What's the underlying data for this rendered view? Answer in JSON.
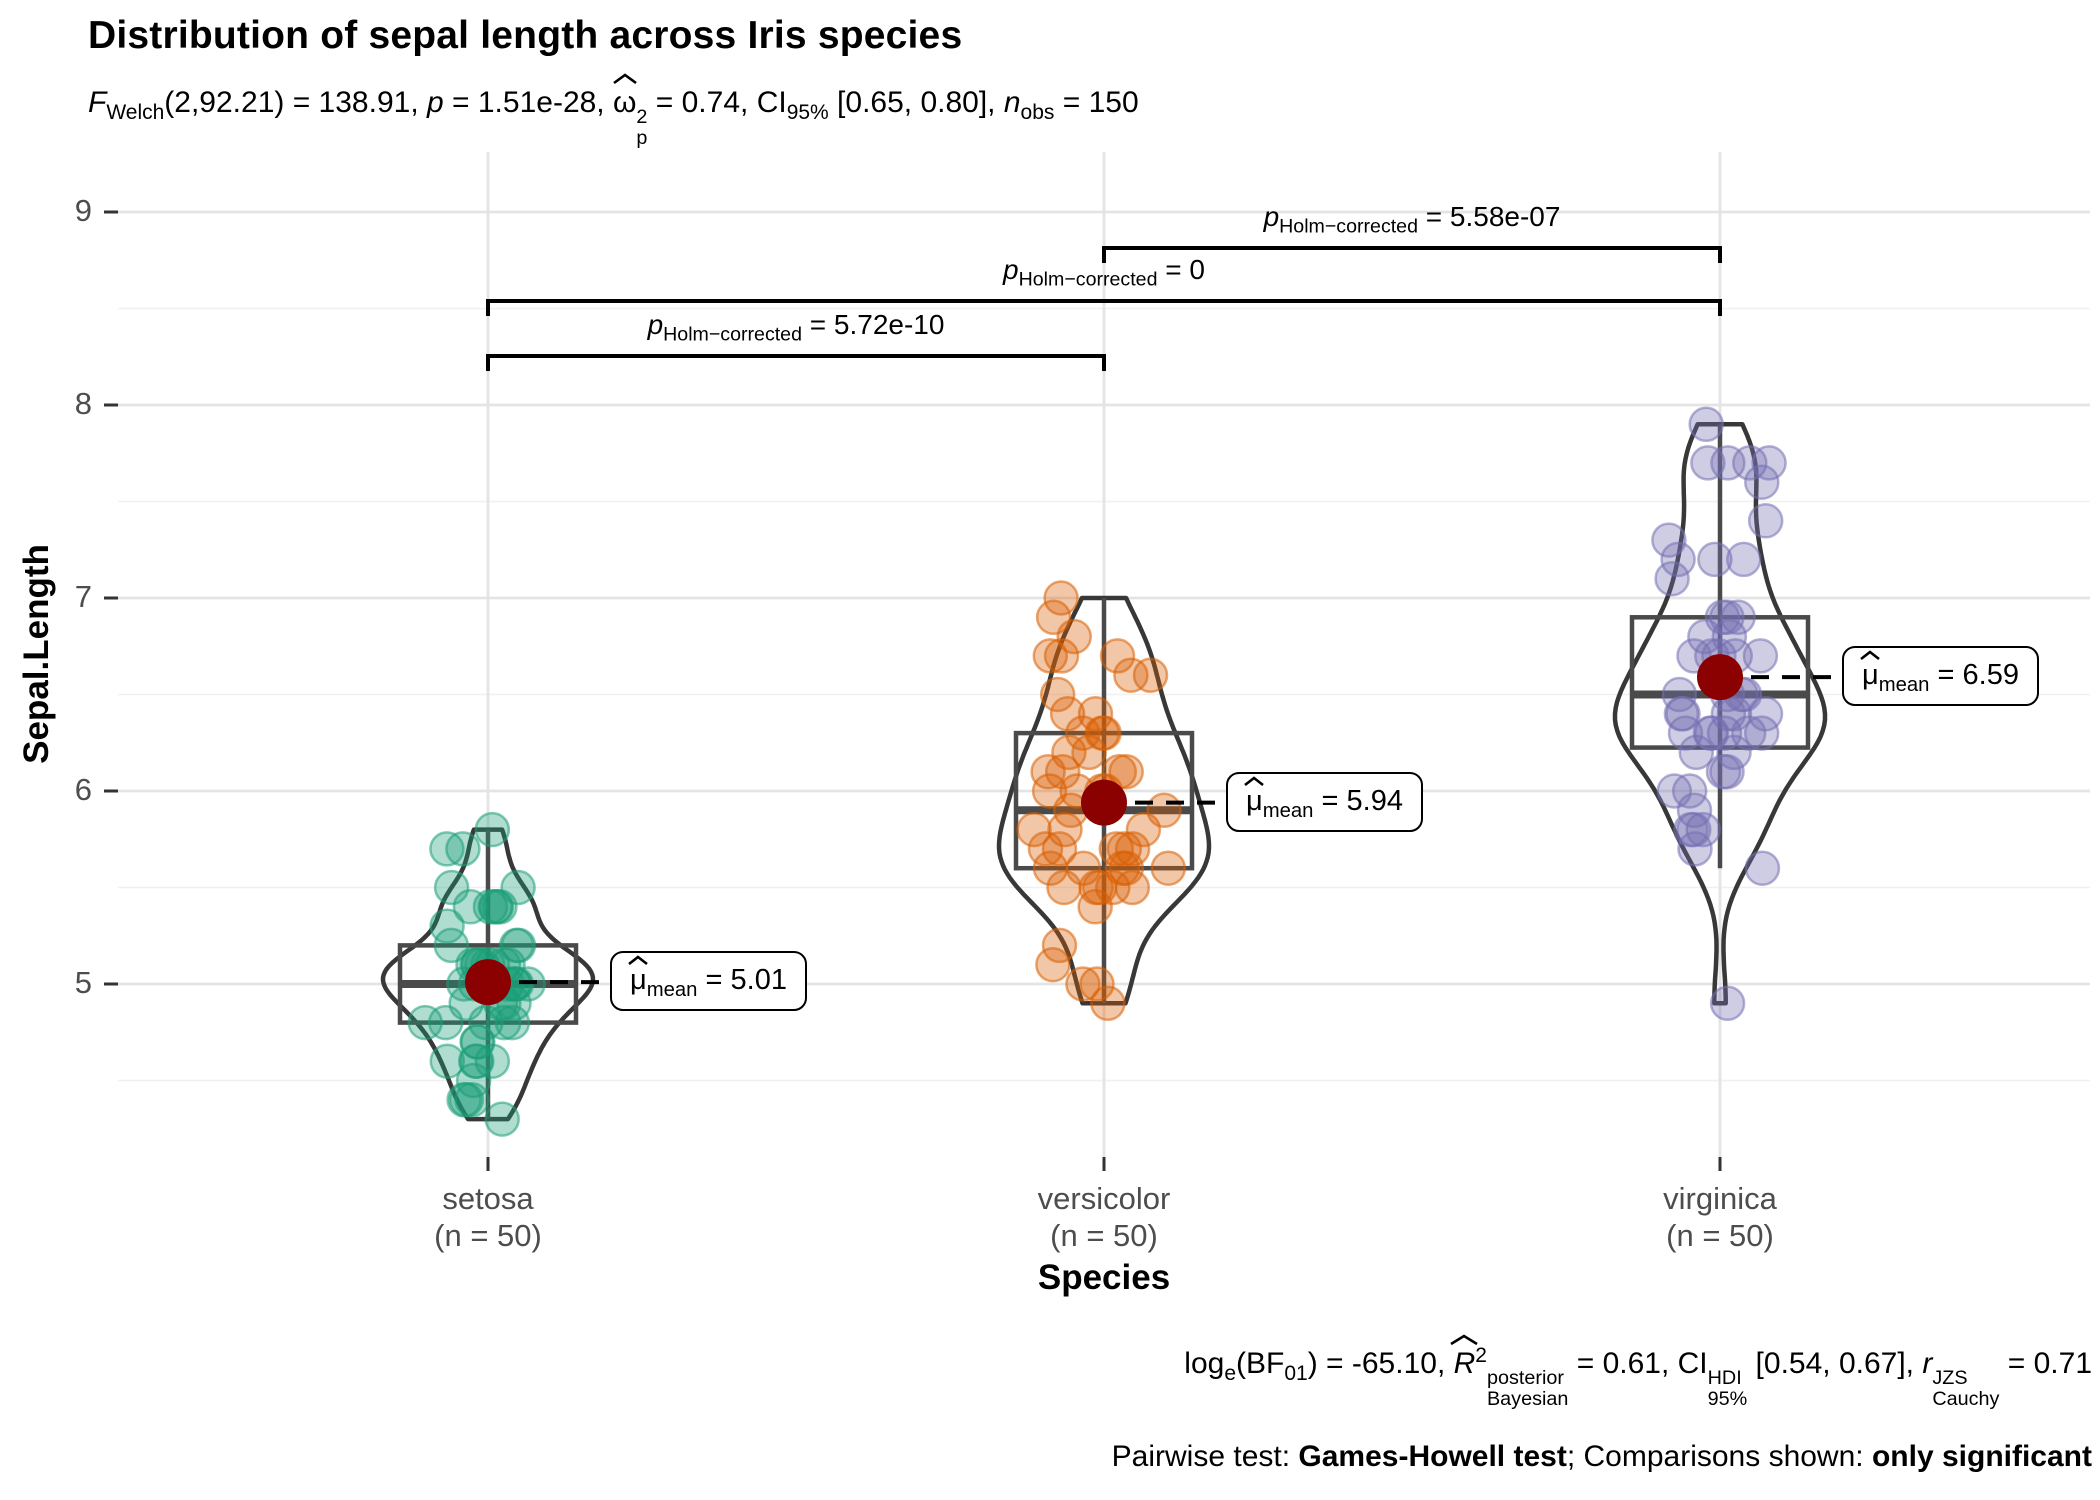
{
  "title": "Distribution of sepal length across Iris species",
  "subtitle": {
    "F": "F",
    "F_sub": "Welch",
    "s1": "(2,92.21) = 138.91, ",
    "p": "p",
    "s2": " = 1.51e-28, ",
    "omega": "ω",
    "omega_sup": "2",
    "omega_sub": "p",
    "s3": " = 0.74, ",
    "CI": "CI",
    "CI_sub": "95%",
    "s4": " [0.65, 0.80], ",
    "n": "n",
    "n_sub": "obs",
    "s5": " = 150"
  },
  "caption": {
    "log": "log",
    "log_sub": "e",
    "s1": "(BF",
    "bf_sub": "01",
    "s2": ") = -65.10, ",
    "R": "R",
    "R_sup": "2",
    "R_top": "posterior",
    "R_bot": "Bayesian",
    "s3": " = 0.61, ",
    "CI": "CI",
    "CI_top": "HDI",
    "CI_bot": "95%",
    "s4": " [0.54, 0.67], ",
    "r": "r",
    "r_top": "JZS",
    "r_bot": "Cauchy",
    "s5": " = 0.71"
  },
  "caption2": {
    "s1": "Pairwise test: ",
    "b1": "Games-Howell test",
    "s2": "; Comparisons shown: ",
    "b2": "only significant"
  },
  "labels": {
    "mu": "μ",
    "mean_sub": "mean",
    "p": "p",
    "holm_sub": "Holm−corrected"
  },
  "y_axis": {
    "title": "Sepal.Length",
    "ticks": [
      "9",
      "8",
      "7",
      "6",
      "5"
    ]
  },
  "x_axis": {
    "title": "Species",
    "categories": [
      {
        "name": "setosa",
        "n": "(n = 50)"
      },
      {
        "name": "versicolor",
        "n": "(n = 50)"
      },
      {
        "name": "virginica",
        "n": "(n = 50)"
      }
    ]
  },
  "chart_data": {
    "type": "violin+box+jitter",
    "title": "Distribution of sepal length across Iris species",
    "xlabel": "Species",
    "ylabel": "Sepal.Length",
    "ylim": [
      4.0,
      9.0
    ],
    "y_major_ticks": [
      9,
      8,
      7,
      6,
      5
    ],
    "y_minor_ticks": [
      8.5,
      7.5,
      6.5,
      5.5,
      4.5
    ],
    "stats": {
      "F_welch": "F(2,92.21) = 138.91",
      "p": "1.51e-28",
      "omega2_p": 0.74,
      "ci95": [
        0.65,
        0.8
      ],
      "n_obs": 150,
      "log_e_BF01": -65.1,
      "R2_bayesian": 0.61,
      "ci_hdi": [
        0.54,
        0.67
      ],
      "r_cauchy_jzs": 0.71,
      "pairwise_test": "Games-Howell test",
      "comparisons_shown": "only significant"
    },
    "groups": [
      {
        "name": "setosa",
        "n": 50,
        "color": "#1B9E77",
        "mean": 5.01,
        "mean_eq": " = 5.01",
        "box": {
          "q1": 4.8,
          "median": 5.0,
          "q3": 5.2,
          "whisker_low": 4.3,
          "whisker_high": 5.8
        },
        "values": [
          5.1,
          4.9,
          4.7,
          4.6,
          5.0,
          5.4,
          4.6,
          5.0,
          4.4,
          4.9,
          5.4,
          4.8,
          4.8,
          4.3,
          5.8,
          5.7,
          5.4,
          5.1,
          5.7,
          5.1,
          5.4,
          5.1,
          4.6,
          5.1,
          4.8,
          5.0,
          5.0,
          5.2,
          5.2,
          4.7,
          4.8,
          5.4,
          5.2,
          5.5,
          4.9,
          5.0,
          5.5,
          4.9,
          4.4,
          5.1,
          5.0,
          4.5,
          4.4,
          5.0,
          5.1,
          4.8,
          5.1,
          4.6,
          5.3,
          5.0
        ]
      },
      {
        "name": "versicolor",
        "n": 50,
        "color": "#D95F02",
        "mean": 5.94,
        "mean_eq": " = 5.94",
        "box": {
          "q1": 5.6,
          "median": 5.9,
          "q3": 6.3,
          "whisker_low": 4.9,
          "whisker_high": 7.0
        },
        "values": [
          7.0,
          6.4,
          6.9,
          5.5,
          6.5,
          5.7,
          6.3,
          4.9,
          6.6,
          5.2,
          5.0,
          5.9,
          6.0,
          6.1,
          5.6,
          6.7,
          5.6,
          5.8,
          6.2,
          5.6,
          5.9,
          6.1,
          6.3,
          6.1,
          6.4,
          6.6,
          6.8,
          6.7,
          6.0,
          5.7,
          5.5,
          5.5,
          5.8,
          6.0,
          5.4,
          6.0,
          6.7,
          6.3,
          5.6,
          5.5,
          5.5,
          6.1,
          5.8,
          5.0,
          5.6,
          5.7,
          5.7,
          6.2,
          5.1,
          5.7
        ]
      },
      {
        "name": "virginica",
        "n": 50,
        "color": "#7570B3",
        "mean": 6.59,
        "mean_eq": " = 6.59",
        "box": {
          "q1": 6.225,
          "median": 6.5,
          "q3": 6.9,
          "whisker_low": 5.6,
          "whisker_high": 7.9
        },
        "values": [
          6.3,
          5.8,
          7.1,
          6.3,
          6.5,
          7.6,
          4.9,
          7.3,
          6.7,
          7.2,
          6.5,
          6.4,
          6.8,
          5.7,
          5.8,
          6.4,
          6.5,
          7.7,
          7.7,
          6.0,
          6.9,
          5.6,
          7.7,
          6.3,
          6.7,
          7.2,
          6.2,
          6.1,
          6.4,
          7.2,
          7.4,
          7.9,
          6.4,
          6.3,
          6.1,
          7.7,
          6.3,
          6.4,
          6.0,
          6.9,
          6.7,
          6.9,
          5.8,
          6.8,
          6.7,
          6.7,
          6.3,
          6.5,
          6.2,
          5.9
        ]
      }
    ],
    "brackets": [
      {
        "pair": [
          1,
          2
        ],
        "eq": " = 5.58e-07"
      },
      {
        "pair": [
          0,
          2
        ],
        "eq": " = 0"
      },
      {
        "pair": [
          0,
          1
        ],
        "eq": " = 5.72e-10"
      }
    ],
    "mean_point_color": "#8B0000",
    "box_color": "#4a4a4a",
    "violin_color": "#383838",
    "grid_major_color": "#e4e4e4",
    "grid_minor_color": "#f0f0f0"
  }
}
